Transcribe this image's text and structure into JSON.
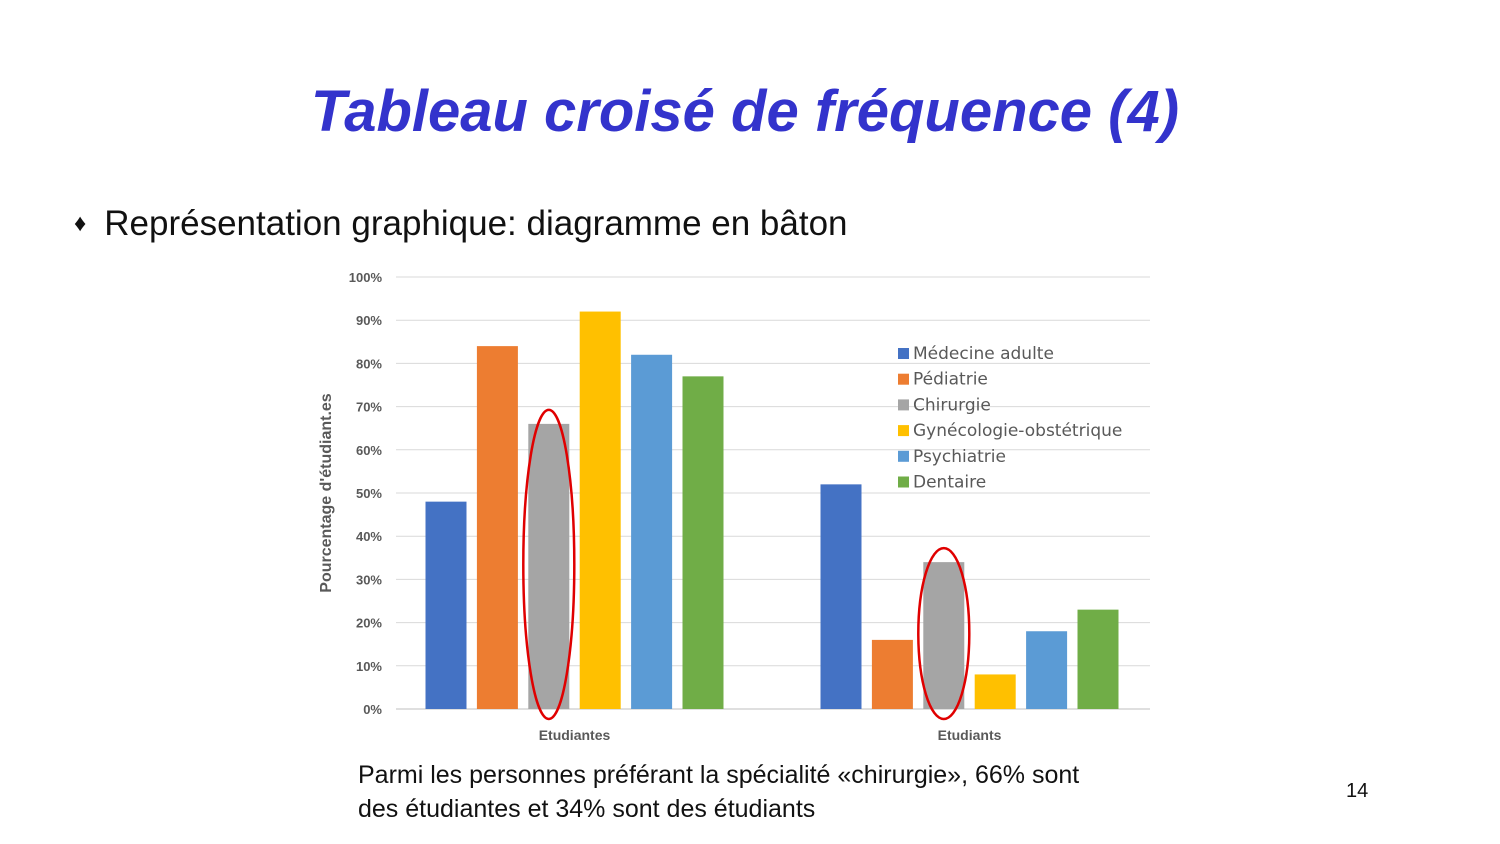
{
  "slide": {
    "title": "Tableau croisé de fréquence (4)",
    "bullet_icon": "diamond-bullet-icon",
    "bullet_text": "Représentation graphique: diagramme en bâton",
    "caption_line1": "Parmi les personnes préférant la spécialité «chirurgie», 66% sont",
    "caption_line2": "des étudiantes et 34% sont des étudiants",
    "page_number": "14"
  },
  "chart_data": {
    "type": "bar",
    "title": "",
    "xlabel": "",
    "ylabel": "Pourcentage d'étudiant.es",
    "categories": [
      "Etudiantes",
      "Etudiants"
    ],
    "ylim": [
      0,
      100
    ],
    "yticks": [
      "0%",
      "10%",
      "20%",
      "30%",
      "40%",
      "50%",
      "60%",
      "70%",
      "80%",
      "90%",
      "100%"
    ],
    "grid": true,
    "legend_position": "top-right",
    "series": [
      {
        "name": "Médecine adulte",
        "color": "#4472c4",
        "values": [
          48,
          52
        ]
      },
      {
        "name": "Pédiatrie",
        "color": "#ed7d31",
        "values": [
          84,
          16
        ]
      },
      {
        "name": "Chirurgie",
        "color": "#a5a5a5",
        "values": [
          66,
          34
        ]
      },
      {
        "name": "Gynécologie-obstétrique",
        "color": "#ffc000",
        "values": [
          92,
          8
        ]
      },
      {
        "name": "Psychiatrie",
        "color": "#5b9bd5",
        "values": [
          82,
          18
        ]
      },
      {
        "name": "Dentaire",
        "color": "#70ad47",
        "values": [
          77,
          23
        ]
      }
    ],
    "highlight": {
      "series": "Chirurgie",
      "color": "#e00000",
      "shape": "ellipse"
    }
  }
}
